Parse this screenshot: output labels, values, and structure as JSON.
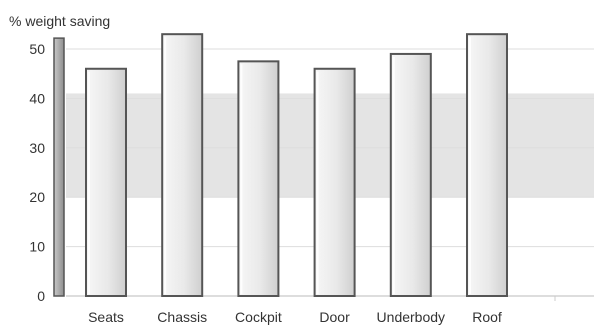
{
  "chart_data": {
    "type": "bar",
    "ylabel": "% weight saving",
    "categories": [
      "Seats",
      "Chassis",
      "Cockpit",
      "Door",
      "Underbody",
      "Roof"
    ],
    "values": [
      46,
      53,
      47.5,
      46,
      49,
      53
    ],
    "ylim": [
      0,
      52
    ],
    "yticks": [
      0,
      10,
      20,
      30,
      40,
      50
    ],
    "shaded_band": [
      20,
      41
    ],
    "grid": true,
    "colors": {
      "bar_fill": "#e6e6e6",
      "bar_stroke": "#555555",
      "band": "#e4e4e4",
      "grid": "#dddddd",
      "axis_post": "#9a9a9a"
    }
  }
}
